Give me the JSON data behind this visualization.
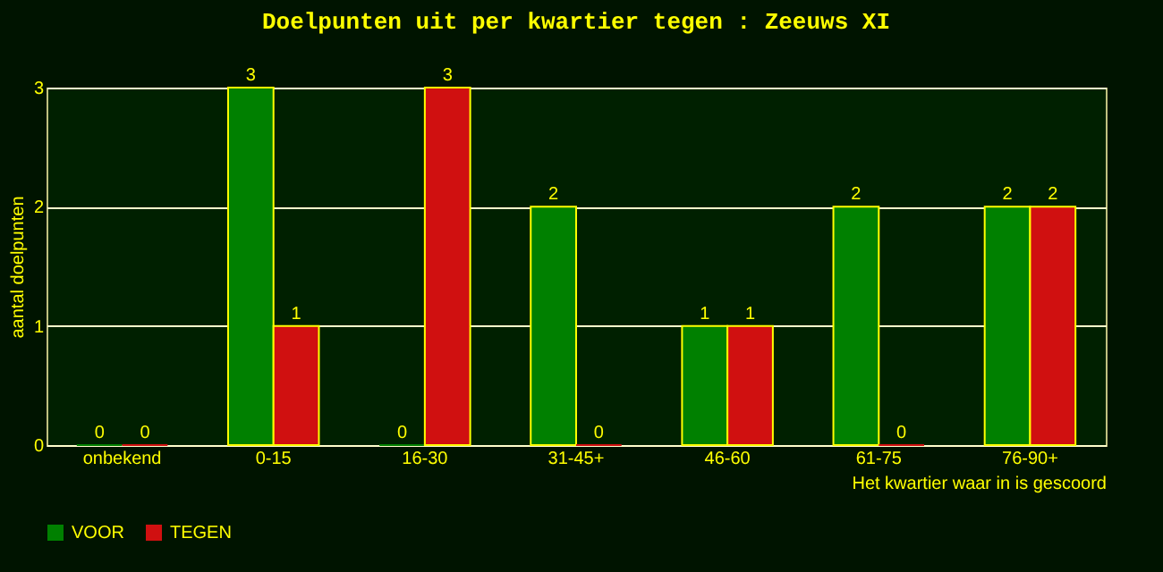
{
  "chart_data": {
    "type": "bar",
    "title": "Doelpunten uit per kwartier tegen : Zeeuws XI",
    "xlabel": "Het kwartier waar in is gescoord",
    "ylabel": "aantal doelpunten",
    "categories": [
      "onbekend",
      "0-15",
      "16-30",
      "31-45+",
      "46-60",
      "61-75",
      "76-90+"
    ],
    "series": [
      {
        "name": "VOOR",
        "color": "#008000",
        "values": [
          0,
          3,
          0,
          2,
          1,
          2,
          2
        ]
      },
      {
        "name": "TEGEN",
        "color": "#d01010",
        "values": [
          0,
          1,
          3,
          0,
          1,
          0,
          2
        ]
      }
    ],
    "ylim": [
      0,
      3
    ],
    "yticks": [
      0,
      1,
      2,
      3
    ],
    "grid": "y",
    "legend": "bottom",
    "data_labels": true
  }
}
